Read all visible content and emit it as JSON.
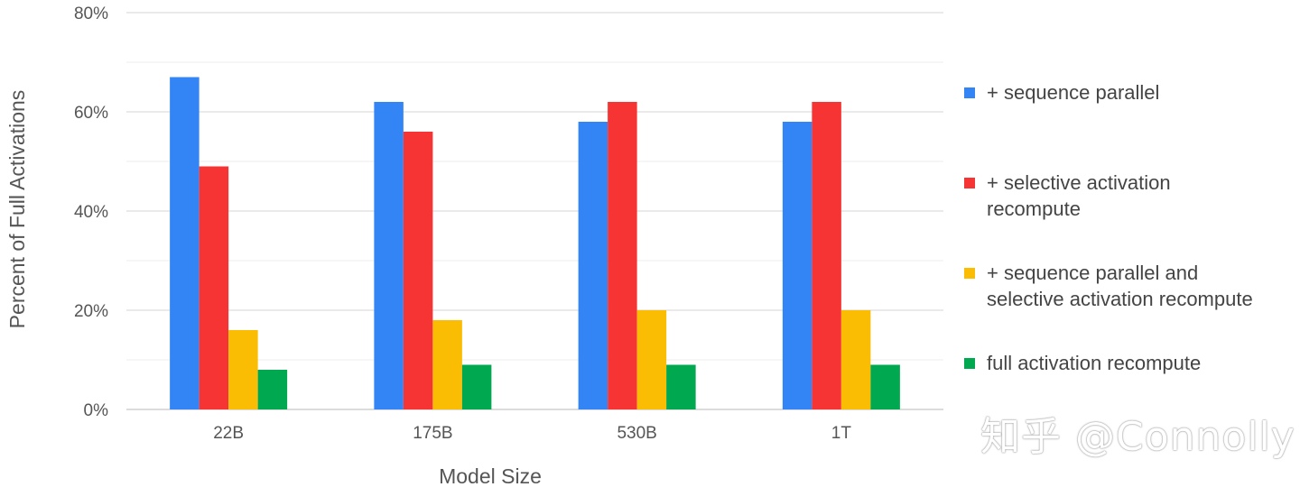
{
  "chart_data": {
    "type": "bar",
    "categories": [
      "22B",
      "175B",
      "530B",
      "1T"
    ],
    "series": [
      {
        "name": "+ sequence parallel",
        "color": "#3385f5",
        "values": [
          67,
          62,
          58,
          58
        ]
      },
      {
        "name": "+ selective activation\nrecompute",
        "color": "#f73434",
        "values": [
          49,
          56,
          62,
          62
        ]
      },
      {
        "name": "+ sequence parallel and\nselective activation recompute",
        "color": "#fbbc04",
        "values": [
          16,
          18,
          20,
          20
        ]
      },
      {
        "name": "full activation recompute",
        "color": "#00a84f",
        "values": [
          8,
          9,
          9,
          9
        ]
      }
    ],
    "xlabel": "Model Size",
    "ylabel": "Percent of Full Activations",
    "ylim": [
      0,
      80
    ],
    "yticks": [
      0,
      20,
      40,
      60,
      80
    ],
    "ytick_labels": [
      "0%",
      "20%",
      "40%",
      "60%",
      "80%"
    ],
    "grid": true,
    "legend_position": "right"
  },
  "watermark": "知乎 @Connolly"
}
